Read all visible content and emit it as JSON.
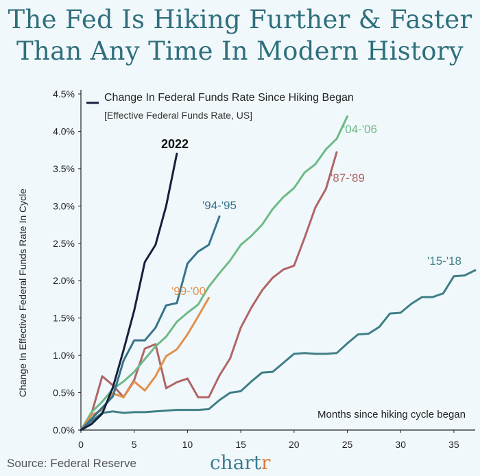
{
  "title": {
    "line1": "The Fed Is Hiking Further & Faster",
    "line2": "Than Any Time In Modern History"
  },
  "source": "Source: Federal Reserve",
  "brand": {
    "main": "chart",
    "accent": "r"
  },
  "colors": {
    "background": "#f1f8fb",
    "title": "#2f6f7c",
    "2022": "#16203d",
    "94-95": "#35748c",
    "04-06": "#6dba87",
    "87-89": "#b06565",
    "99-00": "#e0904e",
    "15-18": "#3f7e86"
  },
  "chart_data": {
    "type": "line",
    "title": "Change In Federal Funds Rate Since Hiking Began",
    "subtitle": "[Effective Federal Funds Rate, US]",
    "xlabel": "Months since hiking cycle began",
    "ylabel": "Change In Effective Federal Funds Rate In Cycle",
    "xlim": [
      0,
      37
    ],
    "ylim": [
      0,
      4.5
    ],
    "x_ticks": [
      "0",
      "5",
      "10",
      "15",
      "20",
      "25",
      "30",
      "35"
    ],
    "y_ticks": [
      "0.0%",
      "0.5%",
      "1.0%",
      "1.5%",
      "2.0%",
      "2.5%",
      "3.0%",
      "3.5%",
      "4.0%",
      "4.5%"
    ],
    "grid": false,
    "series": [
      {
        "name": "'15-'18",
        "color": "#3f7e86",
        "x": [
          0,
          1,
          2,
          3,
          4,
          5,
          6,
          7,
          8,
          9,
          10,
          11,
          12,
          13,
          14,
          15,
          16,
          17,
          18,
          19,
          20,
          21,
          22,
          23,
          24,
          25,
          26,
          27,
          28,
          29,
          30,
          31,
          32,
          33,
          34,
          35,
          36,
          37
        ],
        "y": [
          0,
          0.12,
          0.23,
          0.25,
          0.23,
          0.24,
          0.24,
          0.25,
          0.26,
          0.27,
          0.27,
          0.27,
          0.28,
          0.4,
          0.5,
          0.52,
          0.65,
          0.77,
          0.78,
          0.9,
          1.02,
          1.03,
          1.02,
          1.02,
          1.03,
          1.16,
          1.28,
          1.29,
          1.38,
          1.56,
          1.57,
          1.69,
          1.78,
          1.78,
          1.83,
          2.06,
          2.07,
          2.14
        ]
      },
      {
        "name": "'87-'89",
        "color": "#b06565",
        "x": [
          0,
          1,
          2,
          3,
          4,
          5,
          6,
          7,
          8,
          9,
          10,
          11,
          12,
          13,
          14,
          15,
          16,
          17,
          18,
          19,
          20,
          21,
          22,
          23,
          24
        ],
        "y": [
          0,
          0.22,
          0.72,
          0.6,
          0.44,
          0.67,
          1.09,
          1.15,
          0.56,
          0.64,
          0.69,
          0.44,
          0.44,
          0.73,
          0.96,
          1.37,
          1.64,
          1.87,
          2.04,
          2.15,
          2.2,
          2.58,
          2.98,
          3.23,
          3.72
        ]
      },
      {
        "name": "'04-'06",
        "color": "#6dba87",
        "x": [
          0,
          1,
          2,
          3,
          4,
          5,
          6,
          7,
          8,
          9,
          10,
          11,
          12,
          13,
          14,
          15,
          16,
          17,
          18,
          19,
          20,
          21,
          22,
          23,
          24,
          25
        ],
        "y": [
          0,
          0.24,
          0.38,
          0.55,
          0.65,
          0.78,
          0.95,
          1.12,
          1.25,
          1.45,
          1.57,
          1.68,
          1.92,
          2.1,
          2.27,
          2.48,
          2.6,
          2.75,
          2.96,
          3.12,
          3.24,
          3.45,
          3.56,
          3.76,
          3.9,
          4.2
        ]
      },
      {
        "name": "'99-'00",
        "color": "#e0904e",
        "x": [
          0,
          1,
          2,
          3,
          4,
          5,
          6,
          7,
          8,
          9,
          10,
          11,
          12
        ],
        "y": [
          0,
          0.2,
          0.27,
          0.49,
          0.44,
          0.65,
          0.53,
          0.72,
          0.99,
          1.08,
          1.28,
          1.52,
          1.77
        ]
      },
      {
        "name": "'94-'95",
        "color": "#35748c",
        "x": [
          0,
          1,
          2,
          3,
          4,
          5,
          6,
          7,
          8,
          9,
          10,
          11,
          12,
          13
        ],
        "y": [
          0,
          0.15,
          0.3,
          0.45,
          0.93,
          1.2,
          1.2,
          1.37,
          1.67,
          1.7,
          2.23,
          2.39,
          2.48,
          2.86
        ]
      },
      {
        "name": "2022",
        "color": "#16203d",
        "x": [
          0,
          1,
          2,
          3,
          4,
          5,
          6,
          7,
          8,
          9
        ],
        "y": [
          0,
          0.08,
          0.22,
          0.57,
          1.07,
          1.6,
          2.25,
          2.48,
          3.0,
          3.7
        ]
      }
    ],
    "series_labels": [
      "2022",
      "'94-'95",
      "'04-'06",
      "'87-'89",
      "'99-'00",
      "'15-'18"
    ]
  }
}
